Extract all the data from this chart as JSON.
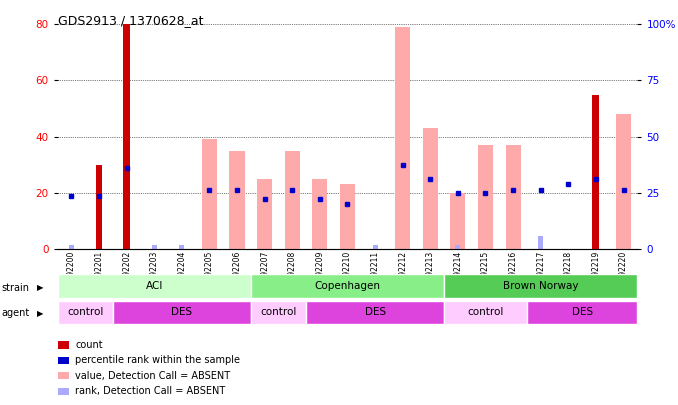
{
  "title": "GDS2913 / 1370628_at",
  "samples": [
    "GSM92200",
    "GSM92201",
    "GSM92202",
    "GSM92203",
    "GSM92204",
    "GSM92205",
    "GSM92206",
    "GSM92207",
    "GSM92208",
    "GSM92209",
    "GSM92210",
    "GSM92211",
    "GSM92212",
    "GSM92213",
    "GSM92214",
    "GSM92215",
    "GSM92216",
    "GSM92217",
    "GSM92218",
    "GSM92219",
    "GSM92220"
  ],
  "count_values": [
    0,
    30,
    80,
    0,
    0,
    0,
    0,
    0,
    0,
    0,
    0,
    0,
    0,
    0,
    0,
    0,
    0,
    0,
    0,
    55,
    0
  ],
  "rank_values": [
    19,
    19,
    29,
    0,
    0,
    21,
    21,
    18,
    21,
    18,
    16,
    0,
    30,
    25,
    20,
    20,
    21,
    21,
    23,
    25,
    21
  ],
  "absent_value_bars": [
    0,
    0,
    0,
    0,
    0,
    39,
    35,
    25,
    35,
    25,
    23,
    0,
    79,
    43,
    20,
    37,
    37,
    0,
    0,
    0,
    48
  ],
  "absent_rank_bars": [
    2,
    2,
    0,
    2,
    2,
    0,
    0,
    0,
    0,
    0,
    0,
    2,
    0,
    0,
    2,
    0,
    0,
    6,
    0,
    0,
    0
  ],
  "ylim_left": [
    0,
    80
  ],
  "ylim_right": [
    0,
    100
  ],
  "yticks_left": [
    0,
    20,
    40,
    60,
    80
  ],
  "yticks_right": [
    0,
    25,
    50,
    75,
    100
  ],
  "strain_groups": [
    {
      "label": "ACI",
      "start": 0,
      "end": 7,
      "color": "#ccffcc"
    },
    {
      "label": "Copenhagen",
      "start": 7,
      "end": 14,
      "color": "#88ee88"
    },
    {
      "label": "Brown Norway",
      "start": 14,
      "end": 21,
      "color": "#55cc55"
    }
  ],
  "agent_groups": [
    {
      "label": "control",
      "start": 0,
      "end": 2,
      "color": "#ffccff"
    },
    {
      "label": "DES",
      "start": 2,
      "end": 7,
      "color": "#dd44dd"
    },
    {
      "label": "control",
      "start": 7,
      "end": 9,
      "color": "#ffccff"
    },
    {
      "label": "DES",
      "start": 9,
      "end": 14,
      "color": "#dd44dd"
    },
    {
      "label": "control",
      "start": 14,
      "end": 17,
      "color": "#ffccff"
    },
    {
      "label": "DES",
      "start": 17,
      "end": 21,
      "color": "#dd44dd"
    }
  ],
  "count_color": "#cc0000",
  "rank_color": "#0000cc",
  "absent_value_color": "#ffaaaa",
  "absent_rank_color": "#aaaaff",
  "absent_rank_scale": 3,
  "ytick_right_labels": [
    "0",
    "25",
    "50",
    "75",
    "100%"
  ]
}
